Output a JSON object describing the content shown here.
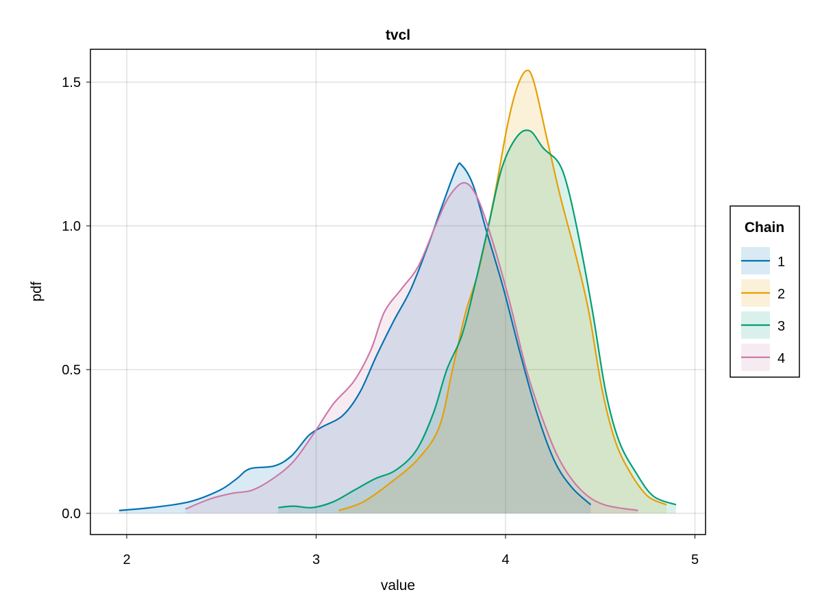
{
  "chart_data": {
    "type": "area",
    "title": "tvcl",
    "xlabel": "value",
    "ylabel": "pdf",
    "xlim": [
      1.81,
      5.06
    ],
    "ylim": [
      -0.075,
      1.62
    ],
    "xticks": [
      "2",
      "3",
      "4",
      "5"
    ],
    "xtick_values": [
      2,
      3,
      4,
      5
    ],
    "yticks": [
      "0.0",
      "0.5",
      "1.0",
      "1.5"
    ],
    "ytick_values": [
      0,
      0.5,
      1.0,
      1.5
    ],
    "grid": true,
    "legend": {
      "title": "Chain",
      "placement": "right"
    },
    "series": [
      {
        "name": "1",
        "color": "#0072b2",
        "x": [
          1.96,
          2.13,
          2.33,
          2.49,
          2.58,
          2.65,
          2.78,
          2.87,
          2.96,
          3.03,
          3.14,
          3.23,
          3.32,
          3.41,
          3.5,
          3.59,
          3.66,
          3.74,
          3.77,
          3.83,
          3.9,
          3.99,
          4.08,
          4.17,
          4.26,
          4.35,
          4.45
        ],
        "y": [
          0.01,
          0.02,
          0.04,
          0.08,
          0.12,
          0.155,
          0.165,
          0.2,
          0.27,
          0.3,
          0.34,
          0.42,
          0.55,
          0.67,
          0.78,
          0.93,
          1.06,
          1.2,
          1.21,
          1.14,
          0.98,
          0.78,
          0.55,
          0.34,
          0.18,
          0.09,
          0.03
        ]
      },
      {
        "name": "2",
        "color": "#e69f00",
        "x": [
          3.12,
          3.25,
          3.4,
          3.54,
          3.65,
          3.72,
          3.79,
          3.86,
          3.94,
          4.01,
          4.06,
          4.11,
          4.15,
          4.22,
          4.29,
          4.37,
          4.44,
          4.51,
          4.58,
          4.66,
          4.75,
          4.85
        ],
        "y": [
          0.01,
          0.04,
          0.11,
          0.19,
          0.3,
          0.5,
          0.7,
          0.85,
          1.1,
          1.35,
          1.48,
          1.54,
          1.5,
          1.3,
          1.1,
          0.9,
          0.7,
          0.43,
          0.25,
          0.14,
          0.06,
          0.03
        ]
      },
      {
        "name": "3",
        "color": "#009e73",
        "x": [
          2.8,
          2.88,
          2.98,
          3.09,
          3.2,
          3.31,
          3.42,
          3.53,
          3.62,
          3.69,
          3.77,
          3.84,
          3.91,
          3.98,
          4.06,
          4.13,
          4.2,
          4.28,
          4.33,
          4.39,
          4.46,
          4.53,
          4.6,
          4.69,
          4.78,
          4.9
        ],
        "y": [
          0.02,
          0.025,
          0.02,
          0.04,
          0.08,
          0.12,
          0.15,
          0.22,
          0.35,
          0.5,
          0.62,
          0.8,
          1.0,
          1.2,
          1.31,
          1.33,
          1.27,
          1.22,
          1.13,
          0.95,
          0.7,
          0.42,
          0.25,
          0.14,
          0.06,
          0.03
        ]
      },
      {
        "name": "4",
        "color": "#cc79a7",
        "x": [
          2.31,
          2.44,
          2.56,
          2.66,
          2.77,
          2.88,
          2.99,
          3.09,
          3.2,
          3.29,
          3.36,
          3.45,
          3.54,
          3.63,
          3.7,
          3.78,
          3.85,
          3.93,
          4.02,
          4.11,
          4.2,
          4.29,
          4.4,
          4.52,
          4.7
        ],
        "y": [
          0.015,
          0.05,
          0.07,
          0.08,
          0.12,
          0.18,
          0.28,
          0.38,
          0.46,
          0.57,
          0.7,
          0.78,
          0.86,
          1.0,
          1.1,
          1.15,
          1.1,
          0.95,
          0.74,
          0.5,
          0.32,
          0.18,
          0.08,
          0.03,
          0.01
        ]
      }
    ]
  }
}
